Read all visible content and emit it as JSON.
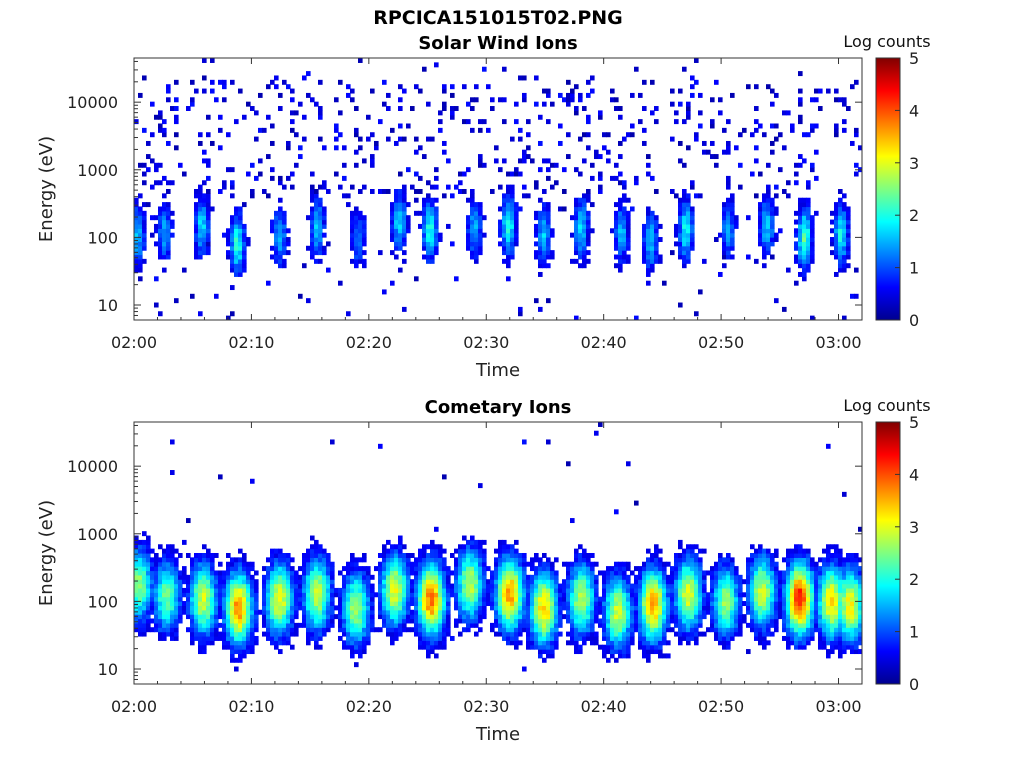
{
  "figure_title": "RPCICA151015T02.PNG",
  "chart_data": [
    {
      "type": "heatmap",
      "title": "Solar Wind Ions",
      "xlabel": "Time",
      "ylabel": "Energy (eV)",
      "x_tick_labels": [
        "02:00",
        "02:10",
        "02:20",
        "02:30",
        "02:40",
        "02:50",
        "03:00"
      ],
      "x_range_minutes": [
        0,
        62
      ],
      "y_scale": "log",
      "y_tick_values": [
        10,
        100,
        1000,
        10000
      ],
      "y_tick_labels": [
        "10",
        "100",
        "1000",
        "10000"
      ],
      "y_range": [
        6,
        45000
      ],
      "colorbar": {
        "title": "Log counts",
        "range": [
          0,
          5
        ],
        "tick_labels": [
          "0",
          "1",
          "2",
          "3",
          "4",
          "5"
        ]
      },
      "bursts": [
        {
          "time_min": 0.3,
          "peak_energy_ev": 110,
          "peak_log_counts": 1.6
        },
        {
          "time_min": 2.6,
          "peak_energy_ev": 120,
          "peak_log_counts": 1.4
        },
        {
          "time_min": 5.8,
          "peak_energy_ev": 150,
          "peak_log_counts": 1.7
        },
        {
          "time_min": 8.8,
          "peak_energy_ev": 80,
          "peak_log_counts": 2.1
        },
        {
          "time_min": 12.4,
          "peak_energy_ev": 110,
          "peak_log_counts": 1.5
        },
        {
          "time_min": 15.6,
          "peak_energy_ev": 140,
          "peak_log_counts": 1.6
        },
        {
          "time_min": 19.1,
          "peak_energy_ev": 100,
          "peak_log_counts": 1.3
        },
        {
          "time_min": 22.6,
          "peak_energy_ev": 170,
          "peak_log_counts": 1.7
        },
        {
          "time_min": 25.2,
          "peak_energy_ev": 130,
          "peak_log_counts": 2.0
        },
        {
          "time_min": 29.0,
          "peak_energy_ev": 140,
          "peak_log_counts": 1.5
        },
        {
          "time_min": 31.9,
          "peak_energy_ev": 150,
          "peak_log_counts": 2.0
        },
        {
          "time_min": 34.9,
          "peak_energy_ev": 110,
          "peak_log_counts": 1.6
        },
        {
          "time_min": 38.1,
          "peak_energy_ev": 140,
          "peak_log_counts": 1.7
        },
        {
          "time_min": 41.5,
          "peak_energy_ev": 120,
          "peak_log_counts": 1.5
        },
        {
          "time_min": 44.0,
          "peak_energy_ev": 90,
          "peak_log_counts": 1.6
        },
        {
          "time_min": 47.0,
          "peak_energy_ev": 130,
          "peak_log_counts": 1.9
        },
        {
          "time_min": 50.6,
          "peak_energy_ev": 140,
          "peak_log_counts": 1.4
        },
        {
          "time_min": 53.9,
          "peak_energy_ev": 150,
          "peak_log_counts": 1.6
        },
        {
          "time_min": 57.1,
          "peak_energy_ev": 100,
          "peak_log_counts": 2.3
        },
        {
          "time_min": 60.2,
          "peak_energy_ev": 110,
          "peak_log_counts": 1.9
        }
      ]
    },
    {
      "type": "heatmap",
      "title": "Cometary Ions",
      "xlabel": "Time",
      "ylabel": "Energy (eV)",
      "x_tick_labels": [
        "02:00",
        "02:10",
        "02:20",
        "02:30",
        "02:40",
        "02:50",
        "03:00"
      ],
      "x_range_minutes": [
        0,
        62
      ],
      "y_scale": "log",
      "y_tick_values": [
        10,
        100,
        1000,
        10000
      ],
      "y_tick_labels": [
        "10",
        "100",
        "1000",
        "10000"
      ],
      "y_range": [
        6,
        45000
      ],
      "colorbar": {
        "title": "Log counts",
        "range": [
          0,
          5
        ],
        "tick_labels": [
          "0",
          "1",
          "2",
          "3",
          "4",
          "5"
        ]
      },
      "bursts": [
        {
          "time_min": 0.4,
          "peak_energy_ev": 180,
          "peak_log_counts": 2.6
        },
        {
          "time_min": 2.8,
          "peak_energy_ev": 120,
          "peak_log_counts": 2.4
        },
        {
          "time_min": 5.9,
          "peak_energy_ev": 110,
          "peak_log_counts": 2.9
        },
        {
          "time_min": 8.9,
          "peak_energy_ev": 80,
          "peak_log_counts": 3.7
        },
        {
          "time_min": 12.4,
          "peak_energy_ev": 110,
          "peak_log_counts": 3.1
        },
        {
          "time_min": 15.6,
          "peak_energy_ev": 130,
          "peak_log_counts": 2.9
        },
        {
          "time_min": 18.9,
          "peak_energy_ev": 80,
          "peak_log_counts": 2.7
        },
        {
          "time_min": 22.2,
          "peak_energy_ev": 150,
          "peak_log_counts": 3.0
        },
        {
          "time_min": 25.3,
          "peak_energy_ev": 110,
          "peak_log_counts": 3.9
        },
        {
          "time_min": 28.6,
          "peak_energy_ev": 180,
          "peak_log_counts": 2.8
        },
        {
          "time_min": 32.0,
          "peak_energy_ev": 130,
          "peak_log_counts": 3.7
        },
        {
          "time_min": 34.9,
          "peak_energy_ev": 80,
          "peak_log_counts": 3.4
        },
        {
          "time_min": 38.1,
          "peak_energy_ev": 110,
          "peak_log_counts": 2.8
        },
        {
          "time_min": 41.2,
          "peak_energy_ev": 70,
          "peak_log_counts": 2.9
        },
        {
          "time_min": 44.2,
          "peak_energy_ev": 90,
          "peak_log_counts": 3.6
        },
        {
          "time_min": 47.2,
          "peak_energy_ev": 130,
          "peak_log_counts": 3.0
        },
        {
          "time_min": 50.4,
          "peak_energy_ev": 100,
          "peak_log_counts": 2.6
        },
        {
          "time_min": 53.5,
          "peak_energy_ev": 140,
          "peak_log_counts": 2.9
        },
        {
          "time_min": 56.7,
          "peak_energy_ev": 110,
          "peak_log_counts": 4.3
        },
        {
          "time_min": 59.4,
          "peak_energy_ev": 100,
          "peak_log_counts": 3.3
        },
        {
          "time_min": 61.0,
          "peak_energy_ev": 90,
          "peak_log_counts": 3.2
        }
      ]
    }
  ]
}
